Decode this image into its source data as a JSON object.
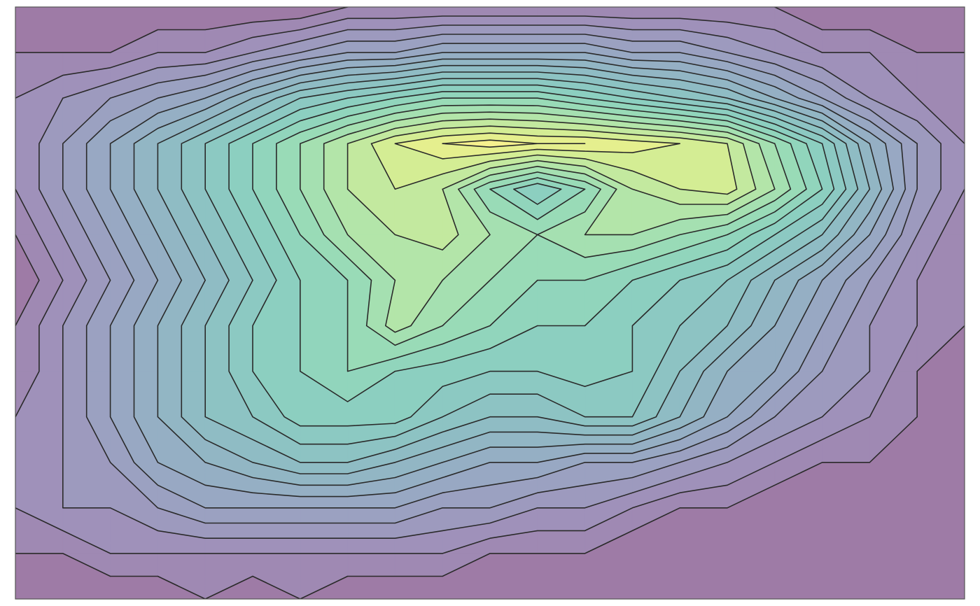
{
  "chart_data": {
    "type": "contour",
    "levels": [
      1,
      2,
      3,
      4,
      5,
      6,
      7,
      8,
      9,
      10,
      11,
      12,
      13,
      14,
      15,
      16,
      17,
      18,
      19
    ],
    "zlim": [
      0,
      20
    ],
    "cmap": [
      "#440154",
      "#482475",
      "#414487",
      "#355f8d",
      "#2a788e",
      "#21918c",
      "#22a884",
      "#44bf70",
      "#7ad151",
      "#bddf26",
      "#fde725"
    ],
    "alpha": 0.52,
    "line_color": "#2a2a2a",
    "z": [
      [
        0,
        0,
        0,
        0,
        0,
        0,
        0,
        1,
        1,
        1,
        1,
        1,
        1,
        1,
        1,
        1,
        1,
        0,
        0,
        0,
        0
      ],
      [
        1,
        1,
        1,
        2,
        2,
        3,
        4,
        5,
        5,
        6,
        6,
        6,
        6,
        5,
        5,
        4,
        3,
        2,
        2,
        1,
        1
      ],
      [
        2,
        3,
        4,
        5,
        6,
        8,
        10,
        11,
        12,
        13,
        13,
        13,
        12,
        11,
        10,
        9,
        7,
        5,
        3,
        2,
        1
      ],
      [
        2,
        4,
        6,
        8,
        10,
        12,
        14,
        16,
        18,
        19,
        19.5,
        19,
        19,
        18.5,
        18,
        17,
        14,
        11,
        7,
        4,
        2
      ],
      [
        2,
        4,
        6,
        8,
        10,
        12,
        14,
        16,
        17,
        16,
        13,
        11,
        13,
        16,
        17,
        17.5,
        15,
        12,
        8,
        4,
        2
      ],
      [
        1,
        3,
        5,
        7,
        9,
        11,
        13,
        15,
        16,
        16.5,
        15,
        14,
        15,
        15,
        14,
        13,
        11,
        9,
        6,
        3,
        1
      ],
      [
        0,
        2,
        4,
        6,
        8,
        10,
        12,
        13,
        15,
        15,
        14,
        13,
        13,
        12,
        11,
        10,
        8,
        6,
        4,
        2,
        1
      ],
      [
        1,
        3,
        5,
        7,
        9,
        11,
        12,
        13,
        15.5,
        14,
        13,
        12,
        12,
        11,
        10,
        9,
        7,
        5,
        3,
        2,
        1
      ],
      [
        1,
        3,
        5,
        7,
        9,
        11,
        12,
        13,
        12,
        11.5,
        11,
        11,
        11.5,
        11,
        9,
        7,
        6,
        4,
        3,
        1,
        0
      ],
      [
        2,
        3,
        5,
        7,
        9,
        10,
        11.5,
        11.5,
        11.5,
        10,
        9,
        9,
        10,
        10,
        8,
        6,
        4,
        3,
        2,
        1,
        0
      ],
      [
        2,
        3,
        4,
        6,
        7,
        8,
        9,
        9,
        8,
        7,
        6,
        6,
        5,
        5,
        4,
        3,
        2,
        1,
        1,
        0,
        0
      ],
      [
        2,
        3,
        3,
        4,
        5,
        5,
        5,
        5,
        5,
        4,
        4,
        3,
        3,
        2,
        1,
        1,
        0,
        0,
        0,
        0,
        0
      ],
      [
        1,
        1,
        2,
        2,
        2,
        2,
        2,
        2,
        2,
        2,
        1,
        1,
        1,
        0,
        0,
        0,
        0,
        0,
        0,
        0,
        0
      ],
      [
        0,
        0,
        0,
        0,
        1,
        0,
        1,
        0,
        0,
        0,
        0,
        0,
        0,
        0,
        0,
        0,
        0,
        0,
        0,
        0,
        0
      ]
    ]
  }
}
